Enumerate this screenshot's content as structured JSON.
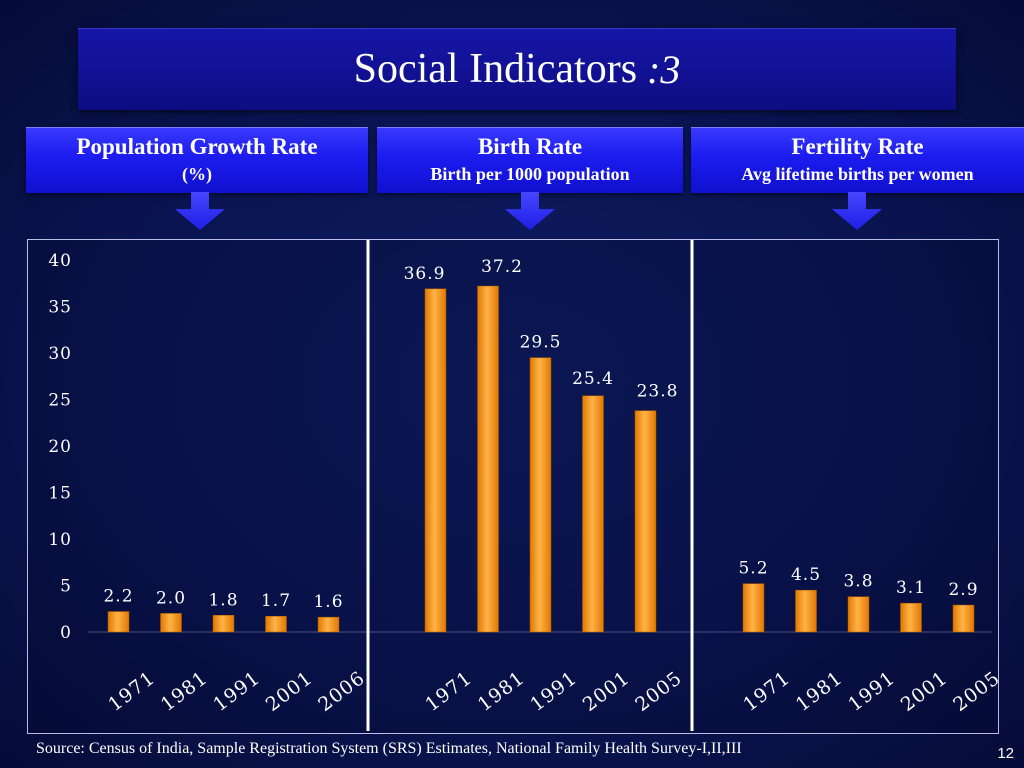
{
  "title": {
    "main": "Social Indicators",
    "sub": ":3"
  },
  "headers": [
    {
      "title": "Population Growth Rate",
      "subtitle": "(%)"
    },
    {
      "title": "Birth Rate",
      "subtitle": "Birth per 1000 population"
    },
    {
      "title": "Fertility Rate",
      "subtitle": "Avg lifetime births per women"
    }
  ],
  "colors": {
    "bar_light": "#ffb347",
    "bar_dark": "#e07800",
    "text": "#ffffff",
    "header_fill": "#2222ee",
    "title_fill": "#1111a0"
  },
  "chart_data": {
    "type": "bar",
    "ylim": [
      0,
      40
    ],
    "yticks": [
      "0",
      "5",
      "10",
      "15",
      "20",
      "25",
      "30",
      "35",
      "40"
    ],
    "grid": false,
    "panels": [
      {
        "name": "Population Growth Rate",
        "categories": [
          "1971",
          "1981",
          "1991",
          "2001",
          "2006"
        ],
        "values": [
          2.2,
          2.0,
          1.8,
          1.7,
          1.6
        ],
        "labels": [
          "2.2",
          "2.0",
          "1.8",
          "1.7",
          "1.6"
        ]
      },
      {
        "name": "Birth Rate",
        "categories": [
          "1971",
          "1981",
          "1991",
          "2001",
          "2005"
        ],
        "values": [
          36.9,
          37.2,
          29.5,
          25.4,
          23.8
        ],
        "labels": [
          "36.9",
          "37.2",
          "29.5",
          "25.4",
          "23.8"
        ]
      },
      {
        "name": "Fertility Rate",
        "categories": [
          "1971",
          "1981",
          "1991",
          "2001",
          "2005"
        ],
        "values": [
          5.2,
          4.5,
          3.8,
          3.1,
          2.9
        ],
        "labels": [
          "5.2",
          "4.5",
          "3.8",
          "3.1",
          "2.9"
        ]
      }
    ]
  },
  "source": "Source: Census of  India, Sample Registration System (SRS) Estimates, National Family Health Survey-I,II,III",
  "page_number": "12"
}
